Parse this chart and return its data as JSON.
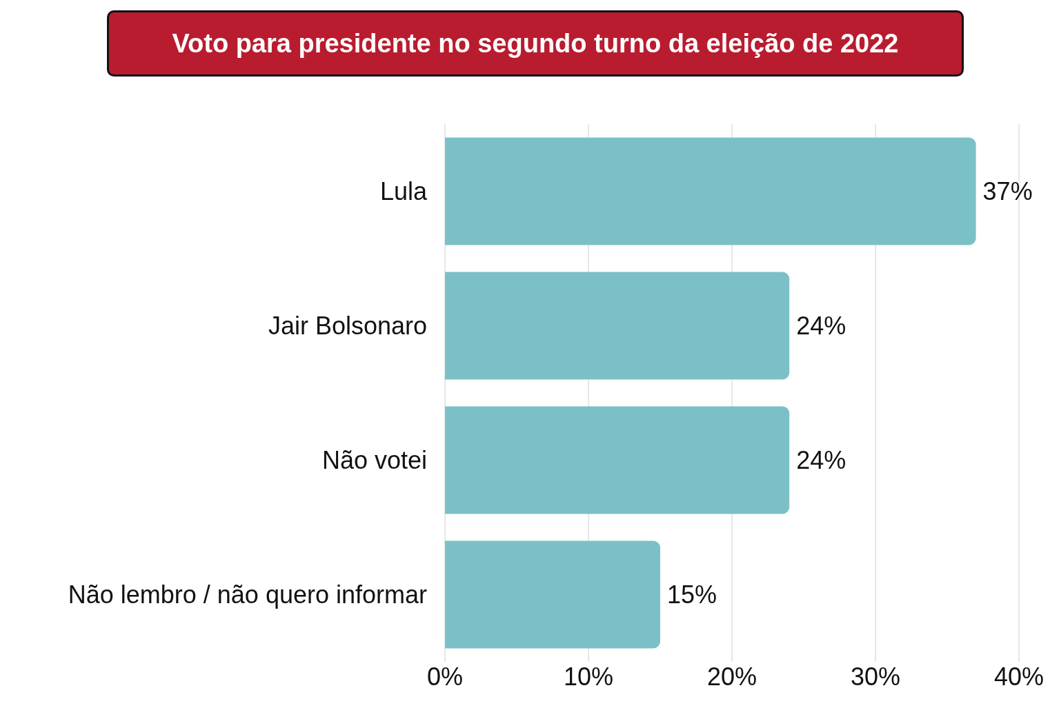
{
  "chart_data": {
    "type": "bar",
    "orientation": "horizontal",
    "title": "Voto para presidente no segundo turno da eleição de 2022",
    "categories": [
      "Lula",
      "Jair Bolsonaro",
      "Não votei",
      "Não lembro / não quero informar"
    ],
    "values": [
      37,
      24,
      24,
      15
    ],
    "color": "#7bc0c7",
    "value_labels": [
      "37%",
      "24%",
      "24%",
      "15%"
    ],
    "xlim": [
      0,
      40
    ],
    "xticks": [
      {
        "value": 0,
        "label": "0%"
      },
      {
        "value": 10,
        "label": "10%"
      },
      {
        "value": 20,
        "label": "20%"
      },
      {
        "value": 30,
        "label": "30%"
      },
      {
        "value": 40,
        "label": "40%"
      }
    ],
    "grid": "x"
  }
}
